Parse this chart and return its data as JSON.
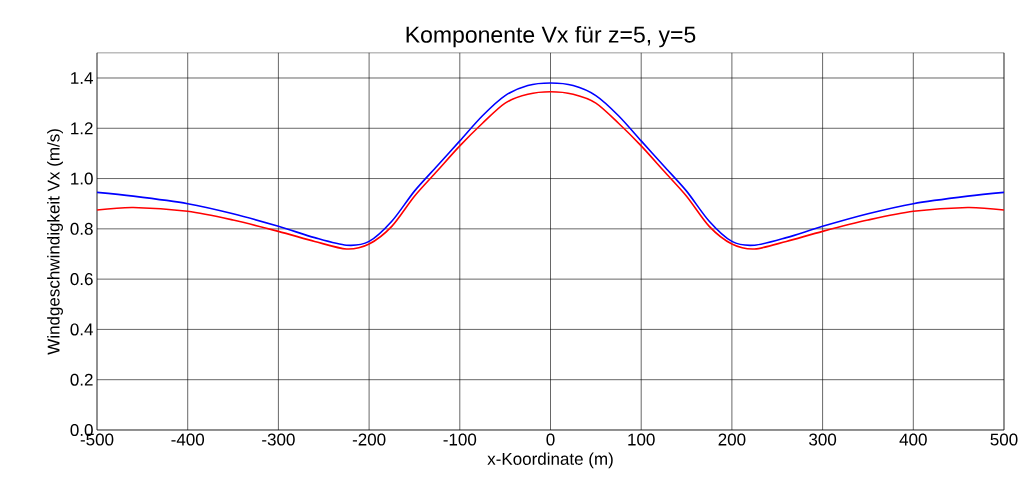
{
  "chart_data": {
    "type": "line",
    "title": "Komponente Vx für z=5, y=5",
    "xlabel": "x-Koordinate (m)",
    "ylabel": "Windgeschwindigkeit Vx (m/s)",
    "x": [
      -500,
      -460,
      -400,
      -350,
      -300,
      -260,
      -225,
      -200,
      -175,
      -150,
      -125,
      -100,
      -75,
      -50,
      -25,
      0,
      25,
      50,
      75,
      100,
      125,
      150,
      175,
      200,
      225,
      260,
      300,
      350,
      400,
      460,
      500
    ],
    "series": [
      {
        "color": "#0000ff",
        "values": [
          0.945,
          0.93,
          0.9,
          0.86,
          0.81,
          0.765,
          0.735,
          0.75,
          0.83,
          0.95,
          1.05,
          1.15,
          1.25,
          1.33,
          1.37,
          1.38,
          1.37,
          1.33,
          1.25,
          1.15,
          1.05,
          0.95,
          0.83,
          0.75,
          0.735,
          0.765,
          0.81,
          0.86,
          0.9,
          0.93,
          0.945
        ]
      },
      {
        "color": "#ff0000",
        "values": [
          0.875,
          0.885,
          0.87,
          0.835,
          0.79,
          0.75,
          0.72,
          0.74,
          0.81,
          0.93,
          1.03,
          1.13,
          1.22,
          1.3,
          1.335,
          1.345,
          1.335,
          1.3,
          1.22,
          1.13,
          1.03,
          0.93,
          0.81,
          0.74,
          0.72,
          0.75,
          0.79,
          0.835,
          0.87,
          0.885,
          0.875
        ]
      }
    ],
    "xlim": [
      -500,
      500
    ],
    "ylim": [
      0,
      1.5
    ],
    "xticks": [
      -500,
      -400,
      -300,
      -200,
      -100,
      0,
      100,
      200,
      300,
      400,
      500
    ],
    "yticks": [
      {
        "value": 0,
        "label": "0.0"
      },
      0.2,
      0.4,
      0.6,
      0.8,
      {
        "value": 1,
        "label": "1.0"
      },
      1.2,
      1.4
    ],
    "grid": true,
    "marker": "none",
    "line_style": "solid"
  }
}
